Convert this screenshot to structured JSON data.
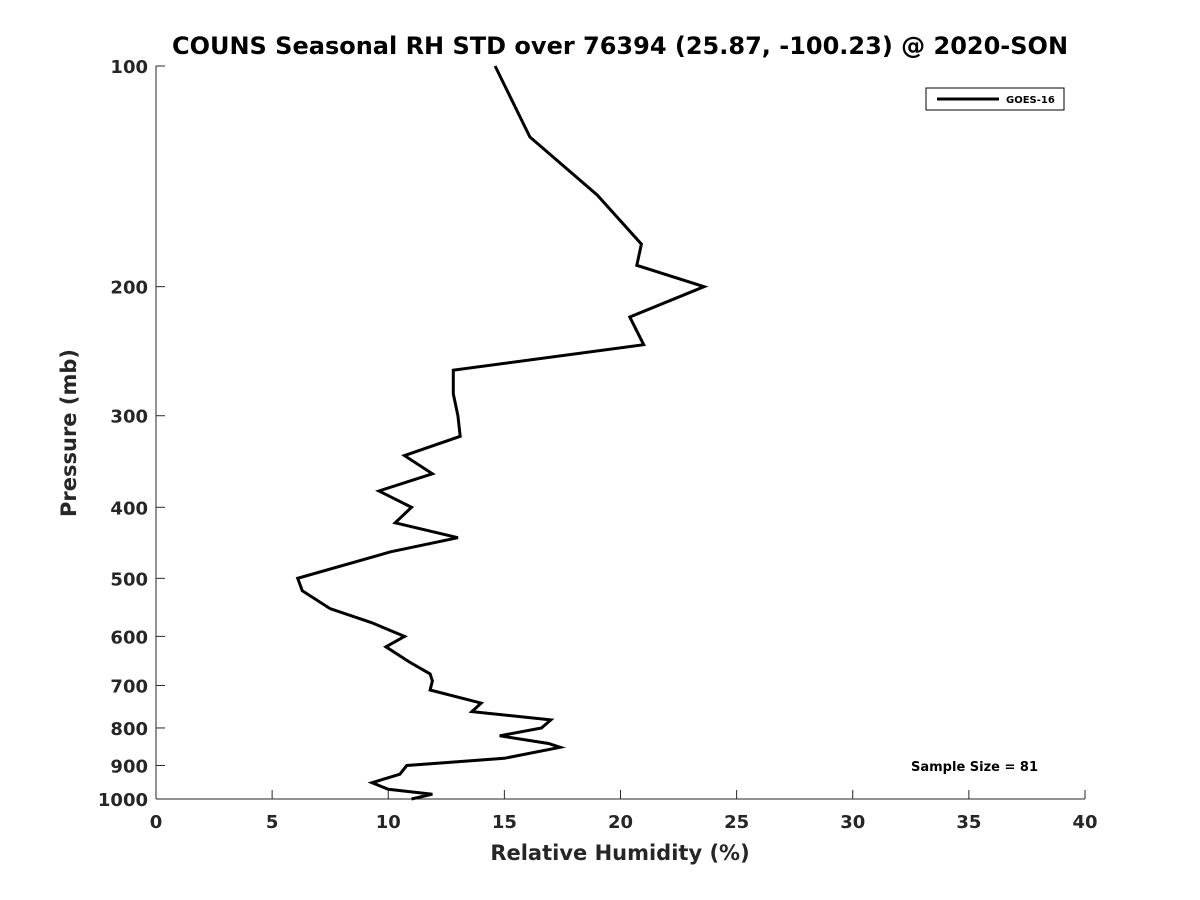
{
  "chart_data": {
    "type": "line",
    "title": "COUNS Seasonal RH STD over 76394 (25.87, -100.23) @ 2020-SON",
    "xlabel": "Relative Humidity (%)",
    "ylabel": "Pressure (mb)",
    "xlim": [
      0,
      40
    ],
    "ylim": [
      100,
      1000
    ],
    "y_scale": "log",
    "y_reversed": true,
    "x_ticks": [
      "0",
      "5",
      "10",
      "15",
      "20",
      "25",
      "30",
      "35",
      "40"
    ],
    "y_ticks": [
      "100",
      "200",
      "300",
      "400",
      "500",
      "600",
      "700",
      "800",
      "900",
      "1000"
    ],
    "grid": false,
    "legend": {
      "position": "top-right",
      "entries": [
        "GOES-16"
      ]
    },
    "annotation": "Sample Size = 81",
    "series": [
      {
        "name": "GOES-16",
        "color": "#000000",
        "points": [
          [
            14.6,
            100
          ],
          [
            16.1,
            125
          ],
          [
            19.0,
            150
          ],
          [
            20.9,
            175
          ],
          [
            20.7,
            187
          ],
          [
            23.6,
            200
          ],
          [
            20.4,
            220
          ],
          [
            21.0,
            240
          ],
          [
            12.8,
            260
          ],
          [
            12.8,
            280
          ],
          [
            13.0,
            300
          ],
          [
            13.1,
            320
          ],
          [
            10.7,
            340
          ],
          [
            11.9,
            360
          ],
          [
            9.6,
            380
          ],
          [
            11.0,
            400
          ],
          [
            10.3,
            420
          ],
          [
            13.0,
            440
          ],
          [
            10.1,
            460
          ],
          [
            6.1,
            500
          ],
          [
            6.3,
            520
          ],
          [
            7.5,
            550
          ],
          [
            9.3,
            575
          ],
          [
            10.7,
            600
          ],
          [
            9.9,
            620
          ],
          [
            10.9,
            650
          ],
          [
            11.8,
            675
          ],
          [
            11.9,
            690
          ],
          [
            11.8,
            710
          ],
          [
            14.0,
            740
          ],
          [
            13.6,
            760
          ],
          [
            17.0,
            780
          ],
          [
            16.6,
            800
          ],
          [
            14.8,
            820
          ],
          [
            16.9,
            840
          ],
          [
            17.4,
            850
          ],
          [
            15.0,
            880
          ],
          [
            10.8,
            900
          ],
          [
            10.5,
            925
          ],
          [
            9.3,
            950
          ],
          [
            10.0,
            970
          ],
          [
            11.9,
            985
          ],
          [
            11.0,
            1000
          ]
        ]
      }
    ]
  }
}
